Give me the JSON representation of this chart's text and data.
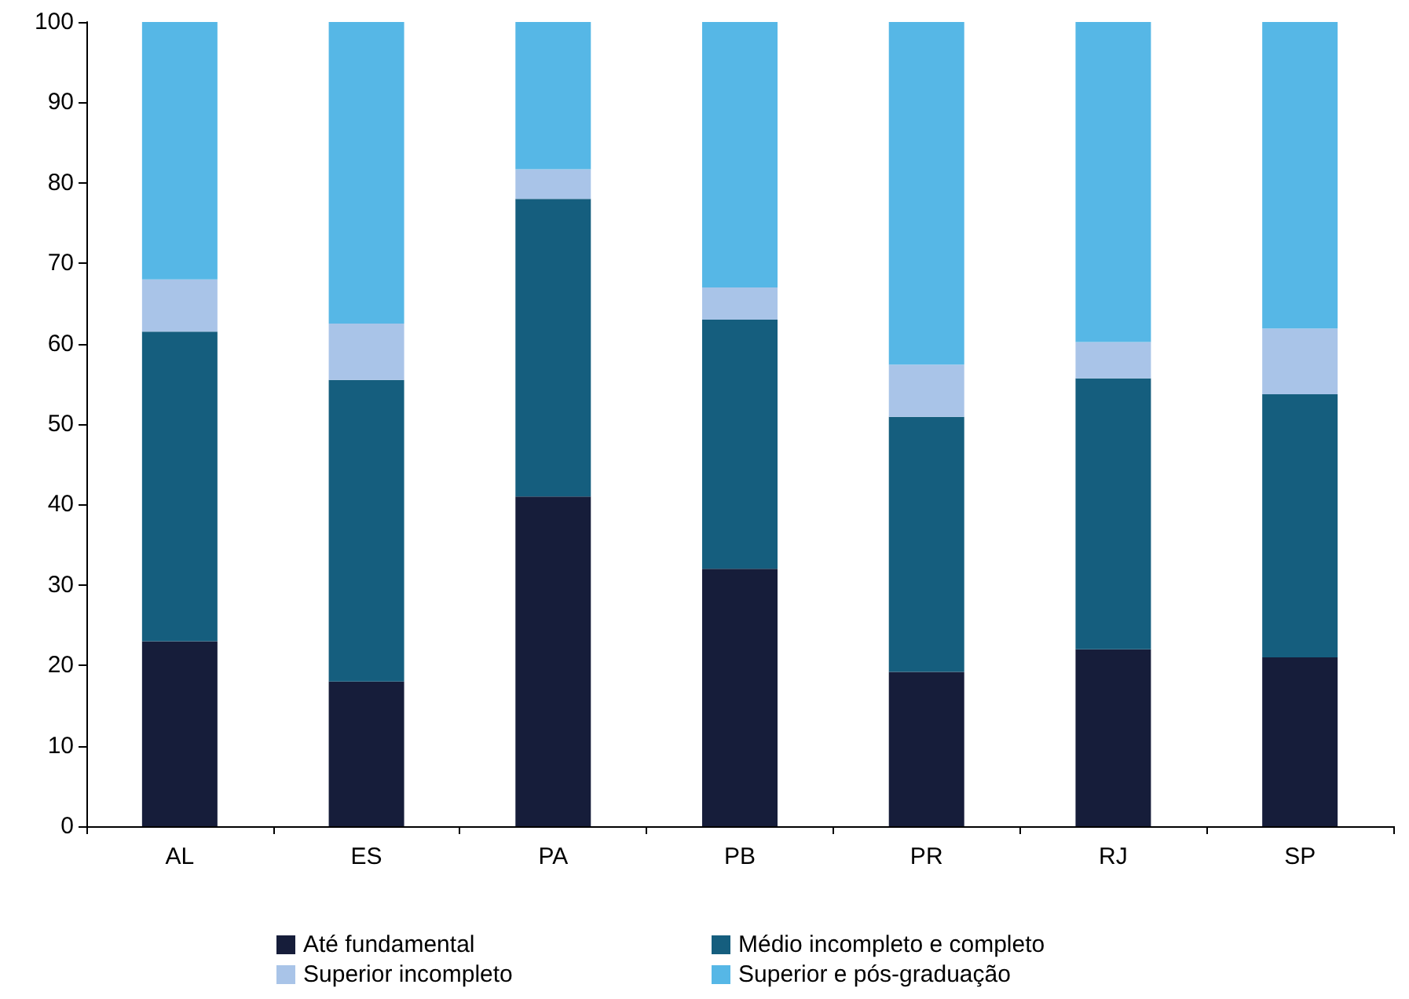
{
  "chart_data": {
    "type": "bar",
    "stacked": true,
    "categories": [
      "AL",
      "ES",
      "PA",
      "PB",
      "PR",
      "RJ",
      "SP"
    ],
    "series": [
      {
        "name": "Até fundamental",
        "color": "#161d3a",
        "values": [
          23,
          18,
          41,
          32,
          19.2,
          22,
          21
        ]
      },
      {
        "name": "Médio incompleto e completo",
        "color": "#155e7e",
        "values": [
          38.5,
          37.5,
          37,
          31,
          31.7,
          33.7,
          32.7
        ]
      },
      {
        "name": "Superior incompleto",
        "color": "#a9c4e8",
        "values": [
          6.5,
          7,
          3.7,
          4,
          6.5,
          4.5,
          8.2
        ]
      },
      {
        "name": "Superior e pós-graduação",
        "color": "#56b7e6",
        "values": [
          32,
          37.5,
          18.3,
          33,
          42.6,
          39.8,
          38.1
        ]
      }
    ],
    "ylim": [
      0,
      100
    ],
    "yticks": [
      0,
      10,
      20,
      30,
      40,
      50,
      60,
      70,
      80,
      90,
      100
    ],
    "grid": false,
    "legend": "bottom"
  }
}
